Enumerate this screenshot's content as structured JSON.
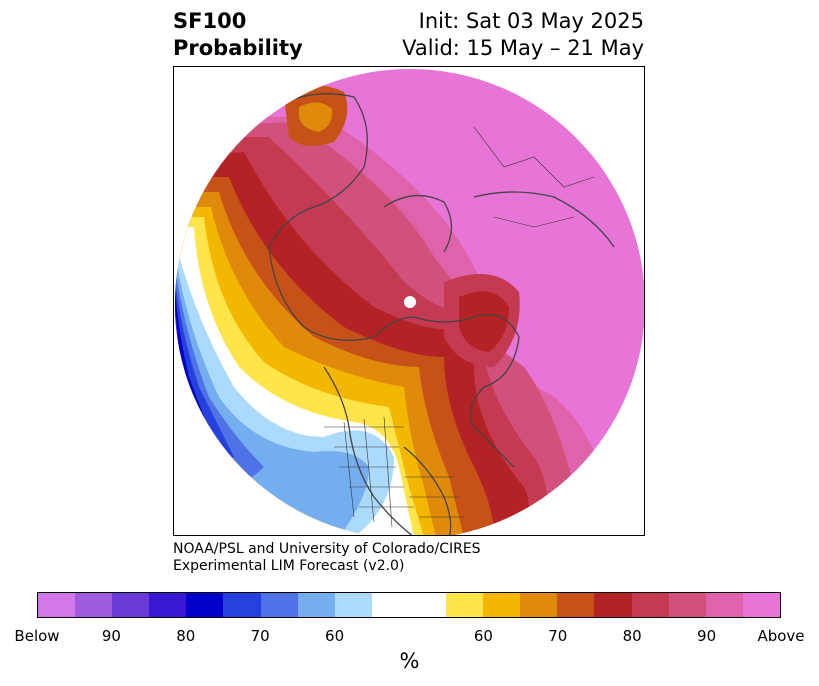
{
  "header": {
    "product_line1": "SF100",
    "product_line2": "Probability",
    "init_text": "Init: Sat 03 May 2025",
    "valid_text": "Valid: 15 May – 21 May"
  },
  "credit": {
    "line1": "NOAA/PSL and University of Colorado/CIRES",
    "line2": "Experimental LIM Forecast (v2.0)"
  },
  "colorbar": {
    "colors": [
      "#d376e8",
      "#9e5be0",
      "#6a3ad6",
      "#3a17d0",
      "#0000cc",
      "#2640dd",
      "#4d73e6",
      "#74aeee",
      "#acdafc",
      "#ffffff",
      "#ffffff",
      "#ffe54a",
      "#f4b700",
      "#e08a0c",
      "#c75218",
      "#b32325",
      "#c43a51",
      "#d2507c",
      "#de63ab",
      "#e775d7"
    ],
    "tick_labels": [
      "Below",
      "90",
      "80",
      "70",
      "60",
      "60",
      "70",
      "80",
      "90",
      "Above"
    ],
    "units": "%"
  },
  "map": {
    "projection": "north-polar-stereographic",
    "variable": "SF100",
    "colors": {
      "above_max": "#e775d7",
      "above_90": "#de63ab",
      "above_85": "#d2507c",
      "above_80": "#c43a51",
      "above_75": "#b32325",
      "above_70": "#c75218",
      "above_65": "#e08a0c",
      "above_60": "#f4b700",
      "above_55": "#ffe54a",
      "below_55": "#acdafc",
      "below_60": "#74aeee",
      "below_65": "#4d73e6",
      "below_70": "#2640dd",
      "below_75": "#0000cc",
      "below_80": "#3a17d0",
      "pole": "#ffffff"
    }
  }
}
